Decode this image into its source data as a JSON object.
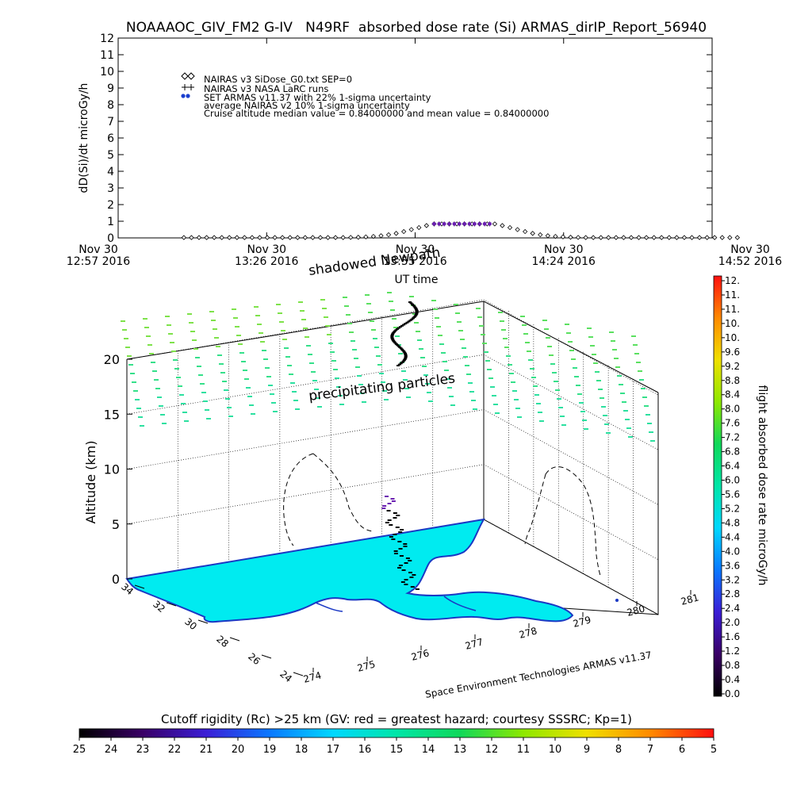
{
  "chart_data": [
    {
      "type": "scatter",
      "title": "NOAAAOC_GIV_FM2 G-IV   N49RF  absorbed dose rate (Si) ARMAS_dirIP_Report_56940",
      "ylabel": "dD(Si)/dt microGy/h",
      "xlabel": "UT time",
      "ylim": [
        0,
        12
      ],
      "yticks": [
        "0",
        "1",
        "2",
        "3",
        "4",
        "5",
        "6",
        "7",
        "8",
        "9",
        "10",
        "11",
        "12"
      ],
      "xticks": [
        {
          "line1": "Nov 30",
          "line2": "12:57 2016"
        },
        {
          "line1": "Nov 30",
          "line2": "13:26 2016"
        },
        {
          "line1": "Nov 30",
          "line2": "13:55 2016"
        },
        {
          "line1": "Nov 30",
          "line2": "14:24 2016"
        },
        {
          "line1": "Nov 30",
          "line2": "14:52 2016"
        }
      ],
      "legend": [
        "NAIRAS v3 SiDose_G0.txt SEP=0",
        "NAIRAS v3 NASA LaRC runs",
        "SET ARMAS v11.37 with 22% 1-sigma uncertainty",
        "average NAIRAS v2 10% 1-sigma uncertainty",
        "Cruise altitude median value = 0.84000000 and mean value = 0.84000000"
      ],
      "legend_position": "top-left",
      "series": [
        {
          "name": "NAIRAS v3 SiDose_G0.txt SEP=0",
          "marker": "diamond",
          "x_minutes": [
            26,
            29,
            32,
            35,
            38,
            41,
            44,
            47,
            50,
            53,
            56,
            59,
            62,
            65,
            68,
            71,
            74,
            77,
            80,
            83,
            86,
            89,
            92,
            95,
            98,
            101,
            104,
            107,
            110,
            113,
            116,
            119,
            122,
            125,
            128,
            131,
            134,
            137,
            140,
            143,
            146,
            149,
            152,
            155,
            158,
            161,
            164,
            167,
            170,
            173,
            176,
            179,
            182,
            185,
            188,
            191,
            194,
            197,
            200,
            203,
            206,
            209,
            212,
            215,
            218,
            221,
            224,
            227,
            230,
            233,
            236,
            239,
            242,
            245
          ],
          "y": [
            0.02,
            0.02,
            0.02,
            0.02,
            0.02,
            0.02,
            0.02,
            0.02,
            0.02,
            0.02,
            0.02,
            0.02,
            0.02,
            0.02,
            0.02,
            0.02,
            0.02,
            0.02,
            0.02,
            0.02,
            0.02,
            0.02,
            0.03,
            0.04,
            0.06,
            0.09,
            0.13,
            0.19,
            0.27,
            0.38,
            0.5,
            0.62,
            0.74,
            0.84,
            0.84,
            0.84,
            0.84,
            0.84,
            0.84,
            0.84,
            0.84,
            0.84,
            0.74,
            0.62,
            0.5,
            0.38,
            0.27,
            0.19,
            0.13,
            0.09,
            0.06,
            0.04,
            0.03,
            0.02,
            0.02,
            0.02,
            0.02,
            0.02,
            0.02,
            0.02,
            0.02,
            0.02,
            0.02,
            0.02,
            0.02,
            0.02,
            0.02,
            0.02,
            0.02,
            0.02,
            0.02,
            0.02,
            0.02,
            0.02
          ]
        },
        {
          "name": "SET ARMAS v11.37 with 22% 1-sigma uncertainty",
          "marker": "dot",
          "x_minutes": [
            125,
            127,
            129,
            131,
            133,
            135,
            137,
            139,
            141,
            143,
            145,
            147
          ],
          "y": [
            0.84,
            0.84,
            0.84,
            0.84,
            0.84,
            0.84,
            0.84,
            0.84,
            0.84,
            0.84,
            0.84,
            0.84
          ]
        }
      ]
    },
    {
      "type": "scatter",
      "title": "",
      "zlabel": "Altitude (km)",
      "zticks": [
        "0",
        "5",
        "10",
        "15",
        "20"
      ],
      "lat_ticks": [
        "24",
        "26",
        "28",
        "30",
        "32",
        "34"
      ],
      "lon_ticks": [
        "274",
        "275",
        "276",
        "277",
        "278",
        "279",
        "280",
        "281"
      ],
      "annotations": [
        "shadowed Newpath",
        "precipitating particles"
      ],
      "credit": "Space Environment Technologies ARMAS v11.37",
      "dose_colorbar": {
        "label": "flight absorbed dose rate microGy/h",
        "ticks": [
          "0.0",
          "0.4",
          "0.8",
          "1.2",
          "1.6",
          "2.0",
          "2.4",
          "2.8",
          "3.2",
          "3.6",
          "4.0",
          "4.4",
          "4.8",
          "5.2",
          "5.6",
          "6.0",
          "6.4",
          "6.8",
          "7.2",
          "7.6",
          "8.0",
          "8.4",
          "8.8",
          "9.2",
          "9.6",
          "10.",
          "10.",
          "11.",
          "11.",
          "12."
        ]
      },
      "rigidity_colorbar": {
        "label": "Cutoff rigidity (Rc) >25 km (GV: red = greatest hazard; courtesy SSSRC; Kp=1)",
        "ticks": [
          "25",
          "24",
          "23",
          "22",
          "21",
          "20",
          "19",
          "18",
          "17",
          "16",
          "15",
          "14",
          "13",
          "12",
          "11",
          "10",
          "9",
          "8",
          "7",
          "6",
          "5"
        ]
      }
    }
  ]
}
